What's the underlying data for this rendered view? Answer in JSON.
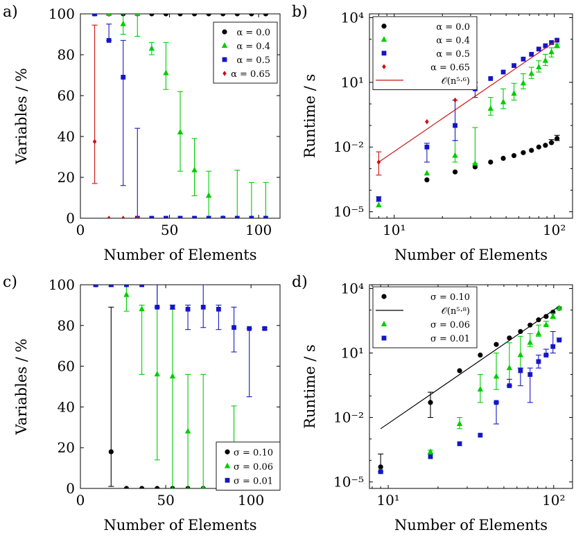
{
  "colors": {
    "black": "#000000",
    "green": "#00cc00",
    "blue": "#1515c8",
    "red": "#cc1111"
  },
  "chart_data": [
    {
      "panel_label": "a)",
      "type": "scatter",
      "xlabel": "Number of Elements",
      "ylabel": "Variables / %",
      "xlim": [
        0,
        112
      ],
      "ylim": [
        0,
        100
      ],
      "x_ticks": [
        0,
        50,
        100
      ],
      "y_ticks": [
        0,
        20,
        40,
        60,
        80,
        100
      ],
      "y_scale": "linear",
      "legend_position": "top-right",
      "series": [
        {
          "name": "α = 0.0",
          "color": "#000000",
          "marker": "circle",
          "x": [
            8,
            16,
            24,
            32,
            40,
            48,
            56,
            64,
            72,
            80,
            88,
            96,
            104
          ],
          "y": [
            100,
            100,
            100,
            100,
            100,
            100,
            100,
            100,
            100,
            100,
            100,
            100,
            100
          ]
        },
        {
          "name": "α = 0.4",
          "color": "#00cc00",
          "marker": "triangle",
          "x": [
            8,
            16,
            24,
            32,
            40,
            48,
            56,
            64,
            72,
            80,
            88,
            96,
            104
          ],
          "y": [
            100,
            100,
            95,
            100,
            83,
            71,
            42,
            23.5,
            11,
            0,
            0,
            0,
            0
          ],
          "err_low": [
            100,
            100,
            90,
            89,
            80,
            63,
            23,
            11,
            0,
            0,
            0,
            0,
            0
          ],
          "err_high": [
            100,
            100,
            100,
            100,
            86,
            86,
            62,
            39,
            23,
            0,
            23.5,
            17.5,
            17.5
          ]
        },
        {
          "name": "α = 0.5",
          "color": "#1515c8",
          "marker": "square",
          "x": [
            8,
            16,
            24,
            32,
            40,
            48,
            56,
            64,
            72,
            80,
            88,
            96,
            104
          ],
          "y": [
            100,
            87,
            69,
            0,
            0,
            0,
            0,
            0,
            0,
            0,
            0,
            0,
            0
          ],
          "err_low": [
            100,
            87,
            16,
            0,
            0,
            0,
            0,
            0,
            0,
            0,
            0,
            0,
            0
          ],
          "err_high": [
            100,
            95,
            87,
            44,
            0,
            0,
            0,
            0,
            0,
            0,
            0,
            0,
            0
          ]
        },
        {
          "name": "α = 0.65",
          "color": "#cc1111",
          "marker": "diamond",
          "x": [
            8,
            16,
            24,
            32
          ],
          "y": [
            37.5,
            0,
            0,
            0
          ],
          "err_low": [
            17,
            0,
            0,
            0
          ],
          "err_high": [
            94.5,
            0,
            0,
            0
          ]
        }
      ]
    },
    {
      "panel_label": "b)",
      "type": "scatter",
      "xlabel": "Number of Elements",
      "ylabel": "Runtime / s",
      "x_scale": "log",
      "y_scale": "log",
      "xlim": [
        7,
        130
      ],
      "ylim": [
        5e-06,
        15000
      ],
      "x_ticks": [
        10,
        100
      ],
      "x_tick_labels": [
        "10¹",
        "10²"
      ],
      "y_ticks": [
        1e-05,
        0.01,
        10,
        10000
      ],
      "y_tick_labels": [
        "10⁻⁵",
        "10⁻²",
        "10¹",
        "10⁴"
      ],
      "legend_position": "top-left",
      "series": [
        {
          "name": "α = 0.0",
          "color": "#000000",
          "marker": "circle",
          "x": [
            16,
            24,
            32,
            40,
            48,
            56,
            64,
            72,
            80,
            88,
            96,
            104
          ],
          "y": [
            0.0003,
            0.0007,
            0.0012,
            0.002,
            0.003,
            0.004,
            0.0055,
            0.007,
            0.01,
            0.012,
            0.016,
            0.025
          ],
          "err_low": [
            0.0003,
            0.0007,
            0.0012,
            0.002,
            0.003,
            0.004,
            0.0055,
            0.007,
            0.01,
            0.012,
            0.016,
            0.02
          ],
          "err_high": [
            0.0003,
            0.0007,
            0.0012,
            0.002,
            0.003,
            0.004,
            0.0055,
            0.007,
            0.01,
            0.012,
            0.022,
            0.035
          ]
        },
        {
          "name": "α = 0.4",
          "color": "#00cc00",
          "marker": "triangle",
          "x": [
            8,
            16,
            24,
            32,
            40,
            48,
            56,
            64,
            72,
            80,
            88,
            96,
            104
          ],
          "y": [
            2e-05,
            0.0006,
            0.004,
            0.0017,
            0.6,
            1.2,
            3,
            9,
            25,
            50,
            100,
            250,
            500
          ],
          "err_low": [
            2e-05,
            0.0006,
            0.002,
            0.0017,
            0.3,
            0.6,
            1.5,
            5,
            15,
            30,
            60,
            150,
            400
          ],
          "err_high": [
            2e-05,
            0.0006,
            0.02,
            0.08,
            2,
            5,
            9,
            25,
            50,
            100,
            200,
            400,
            600
          ]
        },
        {
          "name": "α = 0.5",
          "color": "#1515c8",
          "marker": "square",
          "x": [
            8,
            16,
            24,
            32,
            40,
            48,
            56,
            64,
            72,
            80,
            88,
            96,
            104
          ],
          "y": [
            4e-05,
            0.01,
            0.1,
            5,
            15,
            30,
            60,
            120,
            200,
            350,
            500,
            700,
            900
          ],
          "err_low": [
            3e-05,
            0.002,
            0.02,
            2,
            15,
            30,
            60,
            120,
            200,
            350,
            500,
            700,
            900
          ],
          "err_high": [
            5e-05,
            0.015,
            1.5,
            10,
            15,
            30,
            60,
            120,
            200,
            350,
            500,
            700,
            900
          ]
        },
        {
          "name": "α = 0.65",
          "color": "#cc1111",
          "marker": "diamond",
          "x": [
            8,
            16,
            24
          ],
          "y": [
            0.002,
            0.15,
            1.5
          ],
          "err_low": [
            0.0005,
            0.15,
            1.5
          ],
          "err_high": [
            0.006,
            0.15,
            1.5
          ]
        },
        {
          "name": "𝒪(n⁵·⁶)",
          "color": "#cc1111",
          "type": "line",
          "x": [
            8,
            104
          ],
          "y": [
            0.002,
            900
          ]
        }
      ]
    },
    {
      "panel_label": "c)",
      "type": "scatter",
      "xlabel": "Number of Elements",
      "ylabel": "Variables / %",
      "xlim": [
        0,
        117
      ],
      "ylim": [
        0,
        100
      ],
      "x_ticks": [
        0,
        50,
        100
      ],
      "y_ticks": [
        0,
        20,
        40,
        60,
        80,
        100
      ],
      "y_scale": "linear",
      "legend_position": "bottom-right",
      "series": [
        {
          "name": "σ = 0.10",
          "color": "#000000",
          "marker": "circle",
          "x": [
            9,
            18,
            27,
            36,
            45,
            54,
            63,
            72,
            81,
            90,
            99,
            108
          ],
          "y": [
            100,
            18,
            0,
            0,
            0,
            0,
            0,
            0,
            0,
            0,
            0,
            0
          ],
          "err_low": [
            100,
            1,
            0,
            0,
            0,
            0,
            0,
            0,
            0,
            0,
            0,
            0
          ],
          "err_high": [
            100,
            89,
            0,
            0,
            0,
            0,
            0,
            0,
            0,
            0,
            0,
            0
          ]
        },
        {
          "name": "σ = 0.06",
          "color": "#00cc00",
          "marker": "triangle",
          "x": [
            9,
            18,
            27,
            36,
            45,
            54,
            63,
            72,
            81,
            90,
            99,
            108
          ],
          "y": [
            100,
            100,
            95,
            88,
            56,
            55,
            28,
            0,
            0,
            0,
            0,
            0
          ],
          "err_low": [
            100,
            100,
            87,
            56,
            14,
            0,
            0,
            0,
            0,
            0,
            0,
            0
          ],
          "err_high": [
            100,
            100,
            100,
            90,
            100,
            90,
            56,
            56,
            0,
            40.5,
            0,
            0
          ]
        },
        {
          "name": "σ = 0.01",
          "color": "#1515c8",
          "marker": "square",
          "x": [
            9,
            18,
            27,
            36,
            45,
            54,
            63,
            72,
            81,
            90,
            99,
            108
          ],
          "y": [
            100,
            100,
            100,
            100,
            89,
            89,
            88,
            89,
            88,
            79,
            78.5,
            78.5
          ],
          "err_low": [
            100,
            100,
            100,
            100,
            89,
            88,
            78,
            79,
            78,
            67,
            45,
            78
          ],
          "err_high": [
            100,
            100,
            100,
            100,
            100,
            90,
            90,
            100,
            90,
            89,
            78.5,
            79
          ]
        }
      ]
    },
    {
      "panel_label": "d)",
      "type": "scatter",
      "xlabel": "Number of Elements",
      "ylabel": "Runtime / s",
      "x_scale": "log",
      "y_scale": "log",
      "xlim": [
        7.7,
        130
      ],
      "ylim": [
        5e-06,
        15000
      ],
      "x_ticks": [
        10,
        100
      ],
      "x_tick_labels": [
        "10¹",
        "10²"
      ],
      "y_ticks": [
        1e-05,
        0.01,
        10,
        10000
      ],
      "y_tick_labels": [
        "10⁻⁵",
        "10⁻²",
        "10¹",
        "10⁴"
      ],
      "legend_position": "top-left",
      "series": [
        {
          "name": "σ = 0.10",
          "color": "#000000",
          "marker": "circle",
          "x": [
            9,
            18,
            27,
            36,
            45,
            54,
            63,
            72,
            81,
            90,
            99,
            108
          ],
          "y": [
            5e-05,
            0.05,
            1.5,
            8,
            25,
            50,
            100,
            200,
            350,
            500,
            800,
            1200
          ],
          "err_low": [
            3e-05,
            0.01,
            1.5,
            8,
            25,
            50,
            100,
            200,
            350,
            500,
            800,
            1200
          ],
          "err_high": [
            0.0002,
            0.15,
            1.5,
            8,
            25,
            50,
            100,
            200,
            350,
            500,
            800,
            1200
          ]
        },
        {
          "name": "𝒪(n⁵·⁸)",
          "color": "#000000",
          "type": "line",
          "x": [
            9,
            108
          ],
          "y": [
            0.003,
            1500
          ]
        },
        {
          "name": "σ = 0.06",
          "color": "#00cc00",
          "marker": "triangle",
          "x": [
            9,
            18,
            27,
            36,
            45,
            54,
            63,
            72,
            81,
            90,
            99,
            108
          ],
          "y": [
            3e-05,
            0.00025,
            0.005,
            0.2,
            0.8,
            2,
            8,
            30,
            80,
            200,
            500,
            1200
          ],
          "err_low": [
            3e-05,
            0.0002,
            0.003,
            0.05,
            0.2,
            0.3,
            2,
            20,
            60,
            200,
            400,
            1000
          ],
          "err_high": [
            3e-05,
            0.0003,
            0.01,
            1,
            10,
            30,
            60,
            80,
            200,
            300,
            700,
            1400
          ]
        },
        {
          "name": "σ = 0.01",
          "color": "#1515c8",
          "marker": "square",
          "x": [
            9,
            18,
            27,
            36,
            45,
            54,
            63,
            72,
            81,
            90,
            99,
            108
          ],
          "y": [
            3e-05,
            0.00015,
            0.0006,
            0.0015,
            0.05,
            0.3,
            1.5,
            1,
            4,
            8,
            20,
            40
          ],
          "err_low": [
            3e-05,
            0.00015,
            0.0006,
            0.0015,
            0.005,
            0.3,
            0.3,
            0.05,
            2,
            8,
            10,
            40
          ],
          "err_high": [
            3e-05,
            0.00015,
            0.0006,
            0.0015,
            0.05,
            0.6,
            2,
            2,
            8,
            15,
            100,
            50
          ]
        }
      ]
    }
  ]
}
